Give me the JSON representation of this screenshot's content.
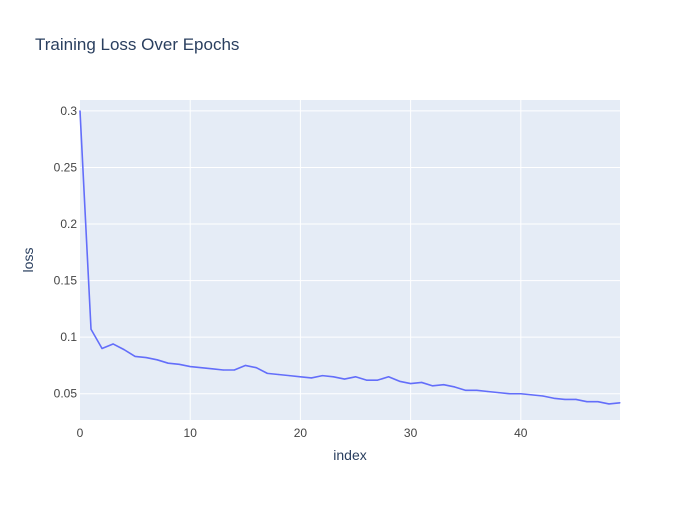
{
  "chart_data": {
    "type": "line",
    "title": "Training Loss Over Epochs",
    "xlabel": "index",
    "ylabel": "loss",
    "xlim": [
      0,
      49
    ],
    "ylim": [
      0.0268,
      0.3096
    ],
    "x_ticks": [
      0,
      10,
      20,
      30,
      40
    ],
    "y_ticks": [
      0.05,
      0.1,
      0.15,
      0.2,
      0.25,
      0.3
    ],
    "x_tick_labels": [
      "0",
      "10",
      "20",
      "30",
      "40"
    ],
    "y_tick_labels": [
      "0.05",
      "0.1",
      "0.15",
      "0.2",
      "0.25",
      "0.3"
    ],
    "grid": true,
    "legend": false,
    "series": [
      {
        "color": "#636efa",
        "x": [
          0,
          1,
          2,
          3,
          4,
          5,
          6,
          7,
          8,
          9,
          10,
          11,
          12,
          13,
          14,
          15,
          16,
          17,
          18,
          19,
          20,
          21,
          22,
          23,
          24,
          25,
          26,
          27,
          28,
          29,
          30,
          31,
          32,
          33,
          34,
          35,
          36,
          37,
          38,
          39,
          40,
          41,
          42,
          43,
          44,
          45,
          46,
          47,
          48,
          49
        ],
        "values": [
          0.3,
          0.107,
          0.09,
          0.094,
          0.089,
          0.083,
          0.082,
          0.08,
          0.077,
          0.076,
          0.074,
          0.073,
          0.072,
          0.071,
          0.071,
          0.075,
          0.073,
          0.068,
          0.067,
          0.066,
          0.065,
          0.064,
          0.066,
          0.065,
          0.063,
          0.065,
          0.062,
          0.062,
          0.065,
          0.061,
          0.059,
          0.06,
          0.057,
          0.058,
          0.056,
          0.053,
          0.053,
          0.052,
          0.051,
          0.05,
          0.05,
          0.049,
          0.048,
          0.046,
          0.045,
          0.045,
          0.043,
          0.043,
          0.041,
          0.042
        ]
      }
    ]
  },
  "colors": {
    "plot_bg": "#e5ecf6",
    "grid": "#ffffff",
    "text": "#2a3f5f",
    "tick_text": "#444444",
    "line": "#636efa"
  }
}
